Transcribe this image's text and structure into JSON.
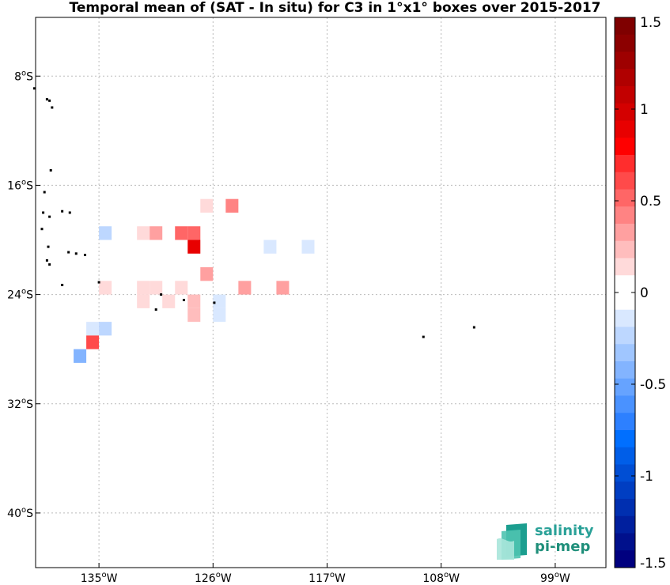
{
  "title": "Temporal mean of (SAT - In situ) for C3 in 1°x1° boxes over 2015-2017",
  "x_ticks": [
    {
      "lon": -135,
      "deg": "135",
      "hemi": "W"
    },
    {
      "lon": -126,
      "deg": "126",
      "hemi": "W"
    },
    {
      "lon": -117,
      "deg": "117",
      "hemi": "W"
    },
    {
      "lon": -108,
      "deg": "108",
      "hemi": "W"
    },
    {
      "lon": -99,
      "deg": "99",
      "hemi": "W"
    }
  ],
  "y_ticks": [
    {
      "lat": -8,
      "deg": "8",
      "hemi": "S"
    },
    {
      "lat": -16,
      "deg": "16",
      "hemi": "S"
    },
    {
      "lat": -24,
      "deg": "24",
      "hemi": "S"
    },
    {
      "lat": -32,
      "deg": "32",
      "hemi": "S"
    },
    {
      "lat": -40,
      "deg": "40",
      "hemi": "S"
    }
  ],
  "extent": {
    "lon_min": -140,
    "lon_max": -95,
    "lat_min": -44,
    "lat_max": -3.7
  },
  "colorbar": {
    "min": -1.5,
    "max": 1.5,
    "tick_values": [
      1.5,
      1,
      0.5,
      0,
      -0.5,
      -1,
      -1.5
    ],
    "tick_labels": [
      "1.5",
      "1",
      "0.5",
      "0",
      "-0.5",
      "-1",
      "-1.5"
    ],
    "colors_top_to_bottom": [
      "#7f0000",
      "#8c0000",
      "#9e0000",
      "#b00000",
      "#c20000",
      "#d40000",
      "#e80000",
      "#ff0000",
      "#ff2d2d",
      "#ff4a4a",
      "#ff6666",
      "#ff8383",
      "#ffa0a0",
      "#ffbdbd",
      "#ffdada",
      "#ffffff",
      "#ffffff",
      "#d9e8ff",
      "#bdd7ff",
      "#a0c6ff",
      "#83b4ff",
      "#66a3ff",
      "#4a92ff",
      "#2d80ff",
      "#006fff",
      "#005ee8",
      "#004ed4",
      "#003ec2",
      "#002fb0",
      "#001f9e",
      "#00108c",
      "#00007f"
    ]
  },
  "cells": [
    {
      "lat": -17.5,
      "lon": -126.5,
      "value": 0.15
    },
    {
      "lat": -17.5,
      "lon": -124.5,
      "value": 0.45
    },
    {
      "lat": -19.5,
      "lon": -134.5,
      "value": -0.25
    },
    {
      "lat": -19.5,
      "lon": -131.5,
      "value": 0.15
    },
    {
      "lat": -19.5,
      "lon": -130.5,
      "value": 0.35
    },
    {
      "lat": -19.5,
      "lon": -127.5,
      "value": 0.55
    },
    {
      "lat": -19.5,
      "lon": -128.5,
      "value": 0.55
    },
    {
      "lat": -20.5,
      "lon": -127.5,
      "value": 0.85
    },
    {
      "lat": -20.5,
      "lon": -121.5,
      "value": -0.15
    },
    {
      "lat": -20.5,
      "lon": -118.5,
      "value": -0.15
    },
    {
      "lat": -22.5,
      "lon": -126.5,
      "value": 0.35
    },
    {
      "lat": -23.5,
      "lon": -134.5,
      "value": 0.15
    },
    {
      "lat": -23.5,
      "lon": -131.5,
      "value": 0.15
    },
    {
      "lat": -23.5,
      "lon": -130.5,
      "value": 0.15
    },
    {
      "lat": -23.5,
      "lon": -128.5,
      "value": 0.15
    },
    {
      "lat": -23.5,
      "lon": -123.5,
      "value": 0.35
    },
    {
      "lat": -23.5,
      "lon": -120.5,
      "value": 0.3
    },
    {
      "lat": -24.5,
      "lon": -131.5,
      "value": 0.15
    },
    {
      "lat": -24.5,
      "lon": -129.5,
      "value": 0.15
    },
    {
      "lat": -24.5,
      "lon": -127.5,
      "value": 0.25
    },
    {
      "lat": -24.5,
      "lon": -125.5,
      "value": -0.1
    },
    {
      "lat": -25.5,
      "lon": -127.5,
      "value": 0.25
    },
    {
      "lat": -25.5,
      "lon": -125.5,
      "value": -0.1
    },
    {
      "lat": -26.5,
      "lon": -135.5,
      "value": -0.1
    },
    {
      "lat": -26.5,
      "lon": -134.5,
      "value": -0.25
    },
    {
      "lat": -27.5,
      "lon": -135.5,
      "value": 0.6
    },
    {
      "lat": -28.5,
      "lon": -136.5,
      "value": -0.45
    }
  ],
  "islands": [
    {
      "lat": -8.9,
      "lon": -140.1
    },
    {
      "lat": -9.7,
      "lon": -139.1
    },
    {
      "lat": -9.8,
      "lon": -138.9
    },
    {
      "lat": -10.3,
      "lon": -138.7
    },
    {
      "lat": -14.9,
      "lon": -138.8
    },
    {
      "lat": -16.5,
      "lon": -139.3
    },
    {
      "lat": -18.0,
      "lon": -139.4
    },
    {
      "lat": -18.3,
      "lon": -138.9
    },
    {
      "lat": -17.9,
      "lon": -137.9
    },
    {
      "lat": -18.0,
      "lon": -137.3
    },
    {
      "lat": -19.2,
      "lon": -139.5
    },
    {
      "lat": -20.5,
      "lon": -139.0
    },
    {
      "lat": -20.9,
      "lon": -137.4
    },
    {
      "lat": -21.0,
      "lon": -136.8
    },
    {
      "lat": -21.1,
      "lon": -136.1
    },
    {
      "lat": -21.5,
      "lon": -139.1
    },
    {
      "lat": -21.8,
      "lon": -138.9
    },
    {
      "lat": -23.1,
      "lon": -135.0
    },
    {
      "lat": -23.3,
      "lon": -137.9
    },
    {
      "lat": -24.0,
      "lon": -130.1
    },
    {
      "lat": -24.4,
      "lon": -128.3
    },
    {
      "lat": -25.1,
      "lon": -130.5
    },
    {
      "lat": -24.6,
      "lon": -125.9
    },
    {
      "lat": -27.1,
      "lon": -109.4
    },
    {
      "lat": -26.4,
      "lon": -105.4
    }
  ],
  "logo": {
    "line1": "salinity",
    "line2": "pi-mep",
    "color": "#2aa198"
  }
}
